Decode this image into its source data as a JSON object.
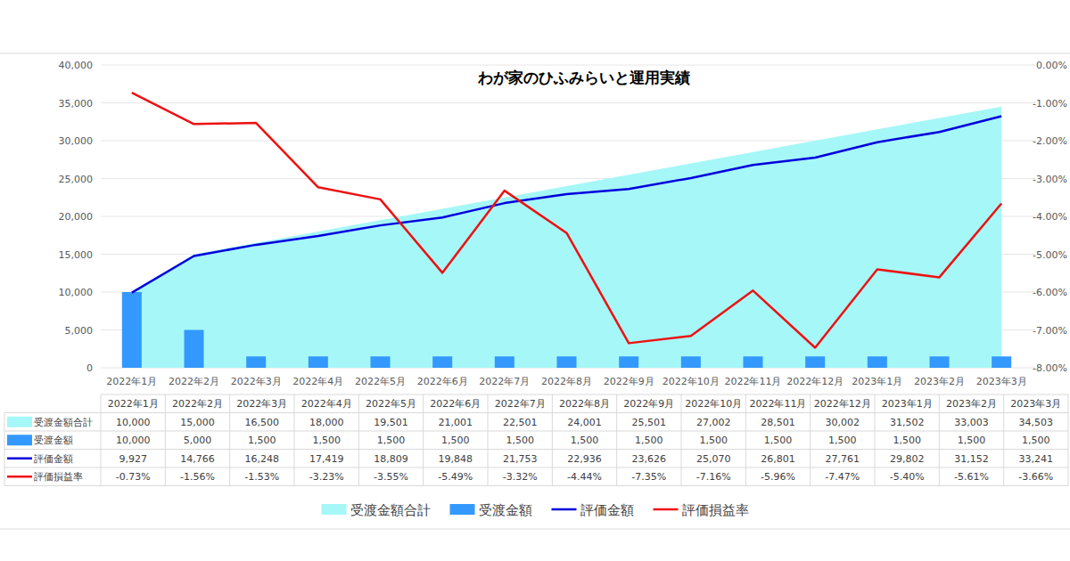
{
  "chart_data": {
    "type": "combo",
    "title": "わが家のひふみらいと運用実績",
    "categories": [
      "2022年1月",
      "2022年2月",
      "2022年3月",
      "2022年4月",
      "2022年5月",
      "2022年6月",
      "2022年7月",
      "2022年8月",
      "2022年9月",
      "2022年10月",
      "2022年11月",
      "2022年12月",
      "2023年1月",
      "2023年2月",
      "2023年3月"
    ],
    "ylim": [
      0,
      40000
    ],
    "yticks": [
      0,
      {
        "value": 5000,
        "label": "5,000"
      },
      {
        "value": 10000,
        "label": "10,000"
      },
      {
        "value": 15000,
        "label": "15,000"
      },
      {
        "value": 20000,
        "label": "20,000"
      },
      {
        "value": 25000,
        "label": "25,000"
      },
      {
        "value": 30000,
        "label": "30,000"
      },
      {
        "value": 35000,
        "label": "35,000"
      },
      {
        "value": 40000,
        "label": "40,000"
      }
    ],
    "y2lim": [
      -8,
      0
    ],
    "y2ticks": [
      {
        "value": 0,
        "label": "0.00%"
      },
      {
        "value": -1,
        "label": "-1.00%"
      },
      {
        "value": -2,
        "label": "-2.00%"
      },
      {
        "value": -3,
        "label": "-3.00%"
      },
      {
        "value": -4,
        "label": "-4.00%"
      },
      {
        "value": -5,
        "label": "-5.00%"
      },
      {
        "value": -6,
        "label": "-6.00%"
      },
      {
        "value": -7,
        "label": "-7.00%"
      },
      {
        "value": -8,
        "label": "-8.00%"
      }
    ],
    "grid": true,
    "legend": "bottom",
    "series": [
      {
        "name": "受渡金額合計",
        "type": "area",
        "color": "#a6f7f7",
        "values": [
          10000,
          15000,
          16500,
          18000,
          19501,
          21001,
          22501,
          24001,
          25501,
          27002,
          28501,
          30002,
          31502,
          33003,
          34503
        ],
        "value_labels": [
          "10,000",
          "15,000",
          "16,500",
          "18,000",
          "19,501",
          "21,001",
          "22,501",
          "24,001",
          "25,501",
          "27,002",
          "28,501",
          "30,002",
          "31,502",
          "33,003",
          "34,503"
        ]
      },
      {
        "name": "受渡金額",
        "type": "bar",
        "color": "#3399ff",
        "values": [
          10000,
          5000,
          1500,
          1500,
          1500,
          1500,
          1500,
          1500,
          1500,
          1500,
          1500,
          1500,
          1500,
          1500,
          1500
        ],
        "value_labels": [
          "10,000",
          "5,000",
          "1,500",
          "1,500",
          "1,500",
          "1,500",
          "1,500",
          "1,500",
          "1,500",
          "1,500",
          "1,500",
          "1,500",
          "1,500",
          "1,500",
          "1,500"
        ]
      },
      {
        "name": "評価金額",
        "type": "line",
        "color": "#0000dd",
        "values": [
          9927,
          14766,
          16248,
          17419,
          18809,
          19848,
          21753,
          22936,
          23626,
          25070,
          26801,
          27761,
          29802,
          31152,
          33241
        ],
        "value_labels": [
          "9,927",
          "14,766",
          "16,248",
          "17,419",
          "18,809",
          "19,848",
          "21,753",
          "22,936",
          "23,626",
          "25,070",
          "26,801",
          "27,761",
          "29,802",
          "31,152",
          "33,241"
        ]
      },
      {
        "name": "評価損益率",
        "type": "line",
        "color": "#ee1111",
        "axis": "y2",
        "values": [
          -0.73,
          -1.56,
          -1.53,
          -3.23,
          -3.55,
          -5.49,
          -3.32,
          -4.44,
          -7.35,
          -7.16,
          -5.96,
          -7.47,
          -5.4,
          -5.61,
          -3.66
        ],
        "value_labels": [
          "-0.73%",
          "-1.56%",
          "-1.53%",
          "-3.23%",
          "-3.55%",
          "-5.49%",
          "-3.32%",
          "-4.44%",
          "-7.35%",
          "-7.16%",
          "-5.96%",
          "-7.47%",
          "-5.40%",
          "-5.61%",
          "-3.66%"
        ]
      }
    ]
  }
}
